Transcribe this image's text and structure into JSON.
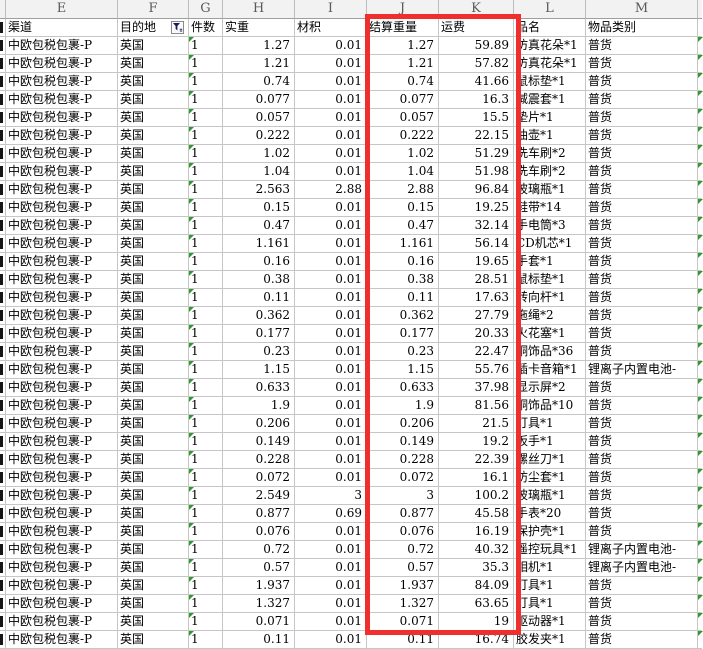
{
  "columns": [
    {
      "letter": "E",
      "header": "渠道",
      "field": "channel"
    },
    {
      "letter": "F",
      "header": "目的地",
      "field": "destination",
      "has_filter": true
    },
    {
      "letter": "G",
      "header": "件数",
      "field": "pieces"
    },
    {
      "letter": "H",
      "header": "实重",
      "field": "actual_weight"
    },
    {
      "letter": "I",
      "header": "材积",
      "field": "volume"
    },
    {
      "letter": "J",
      "header": "结算重量",
      "field": "billed_weight"
    },
    {
      "letter": "K",
      "header": "运费",
      "field": "freight"
    },
    {
      "letter": "L",
      "header": "品名",
      "field": "product"
    },
    {
      "letter": "M",
      "header": "物品类别",
      "field": "category"
    }
  ],
  "icons": {
    "filter": "funnel-filter-icon"
  },
  "colors": {
    "highlight_box": "#f02e2e",
    "grid": "#c6c6c6",
    "header_bg": "#f2f2f2",
    "green_marker": "#2e9b2e",
    "filter_icon": "#1a1a5e"
  },
  "rows": [
    {
      "channel": "中欧包税包裹-P",
      "destination": "英国",
      "pieces": "1",
      "actual_weight": "1.27",
      "volume": "0.01",
      "billed_weight": "1.27",
      "freight": "59.89",
      "product": "仿真花朵*1",
      "category": "普货"
    },
    {
      "channel": "中欧包税包裹-P",
      "destination": "英国",
      "pieces": "1",
      "actual_weight": "1.21",
      "volume": "0.01",
      "billed_weight": "1.21",
      "freight": "57.82",
      "product": "仿真花朵*1",
      "category": "普货"
    },
    {
      "channel": "中欧包税包裹-P",
      "destination": "英国",
      "pieces": "1",
      "actual_weight": "0.74",
      "volume": "0.01",
      "billed_weight": "0.74",
      "freight": "41.66",
      "product": "鼠标垫*1",
      "category": "普货"
    },
    {
      "channel": "中欧包税包裹-P",
      "destination": "英国",
      "pieces": "1",
      "actual_weight": "0.077",
      "volume": "0.01",
      "billed_weight": "0.077",
      "freight": "16.3",
      "product": "减震套*1",
      "category": "普货"
    },
    {
      "channel": "中欧包税包裹-P",
      "destination": "英国",
      "pieces": "1",
      "actual_weight": "0.057",
      "volume": "0.01",
      "billed_weight": "0.057",
      "freight": "15.5",
      "product": "垫片*1",
      "category": "普货"
    },
    {
      "channel": "中欧包税包裹-P",
      "destination": "英国",
      "pieces": "1",
      "actual_weight": "0.222",
      "volume": "0.01",
      "billed_weight": "0.222",
      "freight": "22.15",
      "product": "油壶*1",
      "category": "普货"
    },
    {
      "channel": "中欧包税包裹-P",
      "destination": "英国",
      "pieces": "1",
      "actual_weight": "1.02",
      "volume": "0.01",
      "billed_weight": "1.02",
      "freight": "51.29",
      "product": "洗车刷*2",
      "category": "普货"
    },
    {
      "channel": "中欧包税包裹-P",
      "destination": "英国",
      "pieces": "1",
      "actual_weight": "1.04",
      "volume": "0.01",
      "billed_weight": "1.04",
      "freight": "51.98",
      "product": "洗车刷*2",
      "category": "普货"
    },
    {
      "channel": "中欧包税包裹-P",
      "destination": "英国",
      "pieces": "1",
      "actual_weight": "2.563",
      "volume": "2.88",
      "billed_weight": "2.88",
      "freight": "96.84",
      "product": "玻璃瓶*1",
      "category": "普货"
    },
    {
      "channel": "中欧包税包裹-P",
      "destination": "英国",
      "pieces": "1",
      "actual_weight": "0.15",
      "volume": "0.01",
      "billed_weight": "0.15",
      "freight": "19.25",
      "product": "鞋带*14",
      "category": "普货"
    },
    {
      "channel": "中欧包税包裹-P",
      "destination": "英国",
      "pieces": "1",
      "actual_weight": "0.47",
      "volume": "0.01",
      "billed_weight": "0.47",
      "freight": "32.14",
      "product": "手电筒*3",
      "category": "普货"
    },
    {
      "channel": "中欧包税包裹-P",
      "destination": "英国",
      "pieces": "1",
      "actual_weight": "1.161",
      "volume": "0.01",
      "billed_weight": "1.161",
      "freight": "56.14",
      "product": "CD机芯*1",
      "category": "普货"
    },
    {
      "channel": "中欧包税包裹-P",
      "destination": "英国",
      "pieces": "1",
      "actual_weight": "0.16",
      "volume": "0.01",
      "billed_weight": "0.16",
      "freight": "19.65",
      "product": "手套*1",
      "category": "普货"
    },
    {
      "channel": "中欧包税包裹-P",
      "destination": "英国",
      "pieces": "1",
      "actual_weight": "0.38",
      "volume": "0.01",
      "billed_weight": "0.38",
      "freight": "28.51",
      "product": "鼠标垫*1",
      "category": "普货"
    },
    {
      "channel": "中欧包税包裹-P",
      "destination": "英国",
      "pieces": "1",
      "actual_weight": "0.11",
      "volume": "0.01",
      "billed_weight": "0.11",
      "freight": "17.63",
      "product": "转向杆*1",
      "category": "普货"
    },
    {
      "channel": "中欧包税包裹-P",
      "destination": "英国",
      "pieces": "1",
      "actual_weight": "0.362",
      "volume": "0.01",
      "billed_weight": "0.362",
      "freight": "27.79",
      "product": "拖绳*2",
      "category": "普货"
    },
    {
      "channel": "中欧包税包裹-P",
      "destination": "英国",
      "pieces": "1",
      "actual_weight": "0.177",
      "volume": "0.01",
      "billed_weight": "0.177",
      "freight": "20.33",
      "product": "火花塞*1",
      "category": "普货"
    },
    {
      "channel": "中欧包税包裹-P",
      "destination": "英国",
      "pieces": "1",
      "actual_weight": "0.23",
      "volume": "0.01",
      "billed_weight": "0.23",
      "freight": "22.47",
      "product": "铜饰品*36",
      "category": "普货"
    },
    {
      "channel": "中欧包税包裹-P",
      "destination": "英国",
      "pieces": "1",
      "actual_weight": "1.15",
      "volume": "0.01",
      "billed_weight": "1.15",
      "freight": "55.76",
      "product": "插卡音箱*1",
      "category": "锂离子内置电池-"
    },
    {
      "channel": "中欧包税包裹-P",
      "destination": "英国",
      "pieces": "1",
      "actual_weight": "0.633",
      "volume": "0.01",
      "billed_weight": "0.633",
      "freight": "37.98",
      "product": "显示屏*2",
      "category": "普货"
    },
    {
      "channel": "中欧包税包裹-P",
      "destination": "英国",
      "pieces": "1",
      "actual_weight": "1.9",
      "volume": "0.01",
      "billed_weight": "1.9",
      "freight": "81.56",
      "product": "铜饰品*10",
      "category": "普货"
    },
    {
      "channel": "中欧包税包裹-P",
      "destination": "英国",
      "pieces": "1",
      "actual_weight": "0.206",
      "volume": "0.01",
      "billed_weight": "0.206",
      "freight": "21.5",
      "product": "灯具*1",
      "category": "普货"
    },
    {
      "channel": "中欧包税包裹-P",
      "destination": "英国",
      "pieces": "1",
      "actual_weight": "0.149",
      "volume": "0.01",
      "billed_weight": "0.149",
      "freight": "19.2",
      "product": "扳手*1",
      "category": "普货"
    },
    {
      "channel": "中欧包税包裹-P",
      "destination": "英国",
      "pieces": "1",
      "actual_weight": "0.228",
      "volume": "0.01",
      "billed_weight": "0.228",
      "freight": "22.39",
      "product": "螺丝刀*1",
      "category": "普货"
    },
    {
      "channel": "中欧包税包裹-P",
      "destination": "英国",
      "pieces": "1",
      "actual_weight": "0.072",
      "volume": "0.01",
      "billed_weight": "0.072",
      "freight": "16.1",
      "product": "防尘套*1",
      "category": "普货"
    },
    {
      "channel": "中欧包税包裹-P",
      "destination": "英国",
      "pieces": "1",
      "actual_weight": "2.549",
      "volume": "3",
      "billed_weight": "3",
      "freight": "100.2",
      "product": "玻璃瓶*1",
      "category": "普货"
    },
    {
      "channel": "中欧包税包裹-P",
      "destination": "英国",
      "pieces": "1",
      "actual_weight": "0.877",
      "volume": "0.69",
      "billed_weight": "0.877",
      "freight": "45.58",
      "product": "手表*20",
      "category": "普货"
    },
    {
      "channel": "中欧包税包裹-P",
      "destination": "英国",
      "pieces": "1",
      "actual_weight": "0.076",
      "volume": "0.01",
      "billed_weight": "0.076",
      "freight": "16.19",
      "product": "保护壳*1",
      "category": "普货"
    },
    {
      "channel": "中欧包税包裹-P",
      "destination": "英国",
      "pieces": "1",
      "actual_weight": "0.72",
      "volume": "0.01",
      "billed_weight": "0.72",
      "freight": "40.32",
      "product": "遥控玩具*1",
      "category": "锂离子内置电池-"
    },
    {
      "channel": "中欧包税包裹-P",
      "destination": "英国",
      "pieces": "1",
      "actual_weight": "0.57",
      "volume": "0.01",
      "billed_weight": "0.57",
      "freight": "35.3",
      "product": "相机*1",
      "category": "锂离子内置电池-"
    },
    {
      "channel": "中欧包税包裹-P",
      "destination": "英国",
      "pieces": "1",
      "actual_weight": "1.937",
      "volume": "0.01",
      "billed_weight": "1.937",
      "freight": "84.09",
      "product": "灯具*1",
      "category": "普货"
    },
    {
      "channel": "中欧包税包裹-P",
      "destination": "英国",
      "pieces": "1",
      "actual_weight": "1.327",
      "volume": "0.01",
      "billed_weight": "1.327",
      "freight": "63.65",
      "product": "灯具*1",
      "category": "普货"
    },
    {
      "channel": "中欧包税包裹-P",
      "destination": "英国",
      "pieces": "1",
      "actual_weight": "0.071",
      "volume": "0.01",
      "billed_weight": "0.071",
      "freight": "19",
      "product": "驱动器*1",
      "category": "普货"
    },
    {
      "channel": "中欧包税包裹-P",
      "destination": "英国",
      "pieces": "1",
      "actual_weight": "0.11",
      "volume": "0.01",
      "billed_weight": "0.11",
      "freight": "16.74",
      "product": "胶发夹*1",
      "category": "普货"
    }
  ]
}
